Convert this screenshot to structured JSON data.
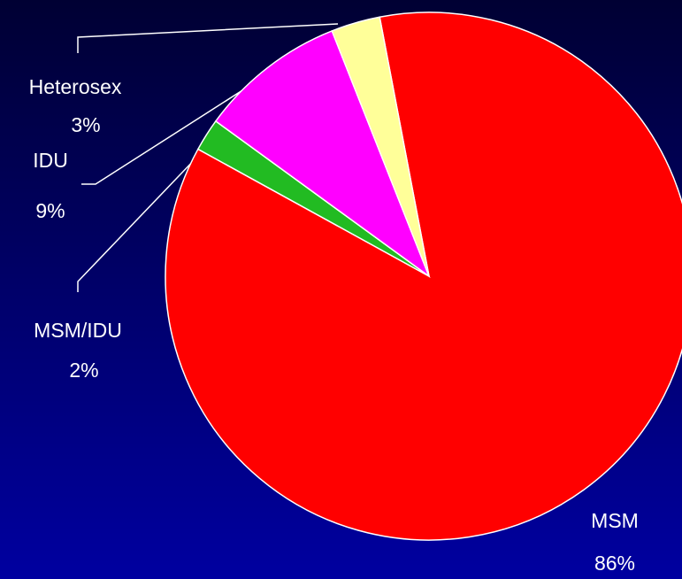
{
  "chart_data": {
    "type": "pie",
    "categories": [
      "MSM",
      "MSM/IDU",
      "IDU",
      "Heterosex"
    ],
    "values": [
      86,
      2,
      9,
      3
    ],
    "value_labels": [
      "86%",
      "2%",
      "9%",
      "3%"
    ],
    "colors": [
      "#ff0000",
      "#22bb22",
      "#ff00ff",
      "#ffff99"
    ]
  }
}
